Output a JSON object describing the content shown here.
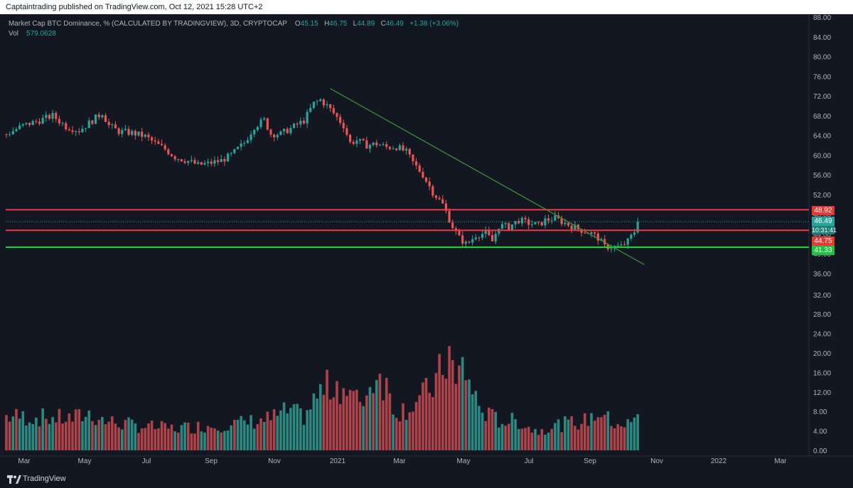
{
  "publish": "Captaintrading published on TradingView.com, Oct 12, 2021 15:28 UTC+2",
  "legend": {
    "title": "Market Cap BTC Dominance, % (CALCULATED BY TRADINGVIEW), 3D, CRYPTOCAP",
    "o_label": "O",
    "o_val": "45.15",
    "h_label": "H",
    "h_val": "46.75",
    "l_label": "L",
    "l_val": "44.89",
    "c_label": "C",
    "c_val": "46.49",
    "change": "+1.38 (+3.06%)",
    "vol_label": "Vol",
    "vol_val": "579.0628"
  },
  "price_labels": {
    "resistance": "48.92",
    "current": "46.49",
    "countdown": "10:31:41",
    "mid": "44.75",
    "support": "41.33"
  },
  "brand": "TradingView",
  "colors": {
    "bg": "#131722",
    "up": "#26a69a",
    "down": "#ef5350",
    "vol_up": "#2a8a82",
    "vol_down": "#b0434a",
    "red_line": "#f23645",
    "green_line": "#00e036",
    "trend": "#3a9a2e"
  },
  "chart_data": {
    "type": "candlestick",
    "price_axis": {
      "ticks": [
        "88.00",
        "84.00",
        "80.00",
        "76.00",
        "72.00",
        "68.00",
        "64.00",
        "60.00",
        "56.00",
        "52.00",
        "48.00",
        "44.00",
        "40.00",
        "36.00",
        "32.00",
        "28.00",
        "24.00",
        "20.00",
        "16.00",
        "12.00",
        "8.00",
        "4.00",
        "0.00"
      ]
    },
    "x_axis": {
      "ticks": [
        "Mar",
        "May",
        "Jul",
        "Sep",
        "Nov",
        "2021",
        "Mar",
        "May",
        "Jul",
        "Sep",
        "Nov",
        "2022",
        "Mar"
      ]
    },
    "close_path": [
      [
        0,
        64.2
      ],
      [
        5,
        66.0
      ],
      [
        9,
        66.8
      ],
      [
        14,
        68.0
      ],
      [
        18,
        65.8
      ],
      [
        22,
        65.0
      ],
      [
        26,
        67.0
      ],
      [
        29,
        68.6
      ],
      [
        31,
        66.0
      ],
      [
        34,
        64.8
      ],
      [
        38,
        64.5
      ],
      [
        42,
        63.8
      ],
      [
        45,
        62.4
      ],
      [
        48,
        61.2
      ],
      [
        51,
        59.6
      ],
      [
        55,
        58.8
      ],
      [
        58,
        58.0
      ],
      [
        61,
        58.3
      ],
      [
        65,
        58.9
      ],
      [
        68,
        60.0
      ],
      [
        72,
        62.5
      ],
      [
        75,
        65.8
      ],
      [
        78,
        67.1
      ],
      [
        80,
        64.3
      ],
      [
        83,
        64.3
      ],
      [
        86,
        65.4
      ],
      [
        90,
        67.0
      ],
      [
        93,
        70.5
      ],
      [
        95,
        71.2
      ],
      [
        97,
        70.0
      ],
      [
        99,
        68.5
      ],
      [
        102,
        66.0
      ],
      [
        104,
        62.5
      ],
      [
        106,
        63.0
      ],
      [
        109,
        62.0
      ],
      [
        112,
        62.3
      ],
      [
        115,
        61.6
      ],
      [
        118,
        61.7
      ],
      [
        121,
        60.6
      ],
      [
        123,
        58.5
      ],
      [
        126,
        56.0
      ],
      [
        129,
        52.5
      ],
      [
        132,
        50.0
      ],
      [
        135,
        45.5
      ],
      [
        137,
        43.2
      ],
      [
        139,
        42.0
      ],
      [
        140,
        42.3
      ],
      [
        142,
        43.8
      ],
      [
        145,
        44.2
      ],
      [
        147,
        42.5
      ],
      [
        149,
        45.7
      ],
      [
        152,
        45.5
      ],
      [
        155,
        46.8
      ],
      [
        158,
        46.2
      ],
      [
        161,
        45.8
      ],
      [
        163,
        46.8
      ],
      [
        166,
        47.2
      ],
      [
        168,
        46.5
      ],
      [
        171,
        45.6
      ],
      [
        174,
        44.8
      ],
      [
        177,
        44.1
      ],
      [
        179,
        43.2
      ],
      [
        181,
        41.4
      ],
      [
        184,
        41.4
      ],
      [
        186,
        41.5
      ],
      [
        188,
        42.5
      ],
      [
        190,
        44.5
      ],
      [
        191,
        46.49
      ]
    ],
    "volume_axis": {
      "ticks": [
        "20.00",
        "16.00",
        "12.00",
        "8.00",
        "4.00",
        "0.00"
      ]
    },
    "volume_path": [
      [
        0,
        7
      ],
      [
        20,
        6.5
      ],
      [
        25,
        7.5
      ],
      [
        30,
        6
      ],
      [
        40,
        5
      ],
      [
        50,
        4.5
      ],
      [
        60,
        5
      ],
      [
        70,
        5.5
      ],
      [
        80,
        6.5
      ],
      [
        85,
        8
      ],
      [
        90,
        7
      ],
      [
        95,
        12
      ],
      [
        100,
        14
      ],
      [
        103,
        12
      ],
      [
        106,
        10
      ],
      [
        110,
        12.5
      ],
      [
        112,
        17
      ],
      [
        115,
        13
      ],
      [
        118,
        8
      ],
      [
        122,
        9
      ],
      [
        126,
        11
      ],
      [
        130,
        14
      ],
      [
        134,
        20
      ],
      [
        136,
        13
      ],
      [
        138,
        18
      ],
      [
        140,
        14
      ],
      [
        143,
        9
      ],
      [
        146,
        7
      ],
      [
        150,
        6
      ],
      [
        155,
        6
      ],
      [
        160,
        4
      ],
      [
        165,
        5
      ],
      [
        170,
        5.5
      ],
      [
        175,
        6
      ],
      [
        180,
        8
      ],
      [
        183,
        5.5
      ],
      [
        185,
        6
      ],
      [
        187,
        5
      ],
      [
        191,
        6.5
      ]
    ],
    "horizontal_levels": [
      {
        "value": 48.92,
        "color": "red"
      },
      {
        "value": 44.75,
        "color": "red"
      },
      {
        "value": 41.33,
        "color": "green"
      }
    ],
    "trendline": {
      "from_index": 98,
      "from_value": 73.5,
      "to_index": 193,
      "to_value": 37.8
    },
    "n_bars": 192
  }
}
